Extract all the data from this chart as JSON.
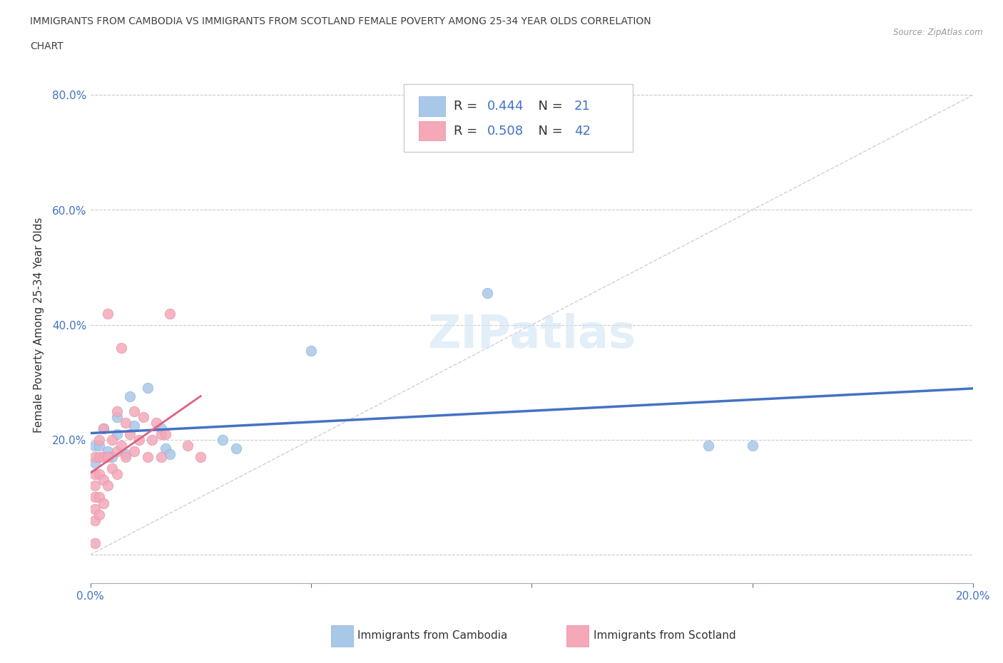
{
  "title_line1": "IMMIGRANTS FROM CAMBODIA VS IMMIGRANTS FROM SCOTLAND FEMALE POVERTY AMONG 25-34 YEAR OLDS CORRELATION",
  "title_line2": "CHART",
  "source": "Source: ZipAtlas.com",
  "ylabel": "Female Poverty Among 25-34 Year Olds",
  "xlim": [
    0.0,
    0.2
  ],
  "ylim": [
    -0.05,
    0.85
  ],
  "xtick_vals": [
    0.0,
    0.05,
    0.1,
    0.15,
    0.2
  ],
  "xtick_labels": [
    "0.0%",
    "",
    "",
    "",
    "20.0%"
  ],
  "ytick_vals": [
    0.0,
    0.2,
    0.4,
    0.6,
    0.8
  ],
  "ytick_labels": [
    "",
    "20.0%",
    "40.0%",
    "60.0%",
    "80.0%"
  ],
  "watermark": "ZIPatlas",
  "cambodia_color": "#a8c8e8",
  "scotland_color": "#f4a8b8",
  "cambodia_line_color": "#4472c4",
  "scotland_line_color": "#e06080",
  "diagonal_color": "#d0d0d0",
  "R_cambodia": 0.444,
  "N_cambodia": 21,
  "R_scotland": 0.508,
  "N_scotland": 42,
  "legend_value_color": "#4472c4",
  "cambodia_scatter_x": [
    0.001,
    0.001,
    0.002,
    0.003,
    0.004,
    0.005,
    0.006,
    0.006,
    0.008,
    0.009,
    0.01,
    0.013,
    0.016,
    0.017,
    0.018,
    0.03,
    0.033,
    0.05,
    0.09,
    0.14,
    0.15
  ],
  "cambodia_scatter_y": [
    0.16,
    0.19,
    0.19,
    0.22,
    0.18,
    0.17,
    0.21,
    0.24,
    0.175,
    0.275,
    0.225,
    0.29,
    0.22,
    0.185,
    0.175,
    0.2,
    0.185,
    0.355,
    0.455,
    0.19,
    0.19
  ],
  "scotland_scatter_x": [
    0.001,
    0.001,
    0.001,
    0.001,
    0.001,
    0.001,
    0.001,
    0.002,
    0.002,
    0.002,
    0.002,
    0.002,
    0.003,
    0.003,
    0.003,
    0.003,
    0.004,
    0.004,
    0.004,
    0.005,
    0.005,
    0.006,
    0.006,
    0.006,
    0.007,
    0.007,
    0.008,
    0.008,
    0.009,
    0.01,
    0.01,
    0.011,
    0.012,
    0.013,
    0.014,
    0.015,
    0.016,
    0.016,
    0.017,
    0.018,
    0.022,
    0.025
  ],
  "scotland_scatter_y": [
    0.06,
    0.08,
    0.1,
    0.12,
    0.14,
    0.17,
    0.02,
    0.07,
    0.1,
    0.14,
    0.17,
    0.2,
    0.09,
    0.13,
    0.17,
    0.22,
    0.12,
    0.17,
    0.42,
    0.15,
    0.2,
    0.14,
    0.18,
    0.25,
    0.19,
    0.36,
    0.17,
    0.23,
    0.21,
    0.18,
    0.25,
    0.2,
    0.24,
    0.17,
    0.2,
    0.23,
    0.17,
    0.21,
    0.21,
    0.42,
    0.19,
    0.17
  ]
}
